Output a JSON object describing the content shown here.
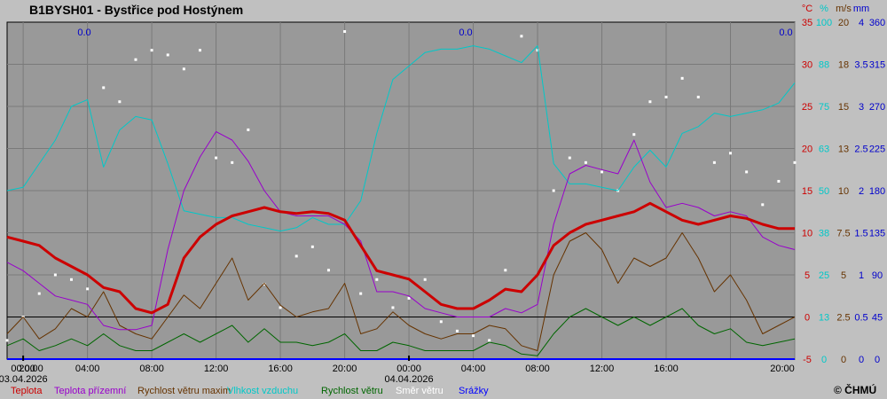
{
  "chart_data": {
    "type": "line",
    "title": "B1BYSH01 - Bystřice pod Hostýnem",
    "copyright": "© ČHMÚ",
    "precip_labels": [
      "0.0",
      "0.0",
      "0.0"
    ],
    "x_ticks": [
      "20:00",
      "00:00",
      "04:00",
      "08:00",
      "12:00",
      "16:00",
      "20:00",
      "00:00",
      "04:00",
      "08:00",
      "12:00",
      "16:00",
      "20:00"
    ],
    "date_labels": [
      "03.04.2026",
      "04.04.2026"
    ],
    "axes": [
      {
        "unit": "°C",
        "color": "#cc0000",
        "ticks": [
          "35",
          "30",
          "25",
          "20",
          "15",
          "10",
          "5",
          "0",
          "-5"
        ]
      },
      {
        "unit": "%",
        "color": "#00c8c8",
        "ticks": [
          "100",
          "88",
          "75",
          "63",
          "50",
          "38",
          "25",
          "13",
          "0"
        ]
      },
      {
        "unit": "m/s",
        "color": "#663300",
        "ticks": [
          "20",
          "18",
          "15",
          "13",
          "10",
          "7.5",
          "5",
          "2.5",
          "0"
        ]
      },
      {
        "unit": "mm",
        "color": "#0000cc",
        "ticks": [
          "4",
          "3.5",
          "3",
          "2.5",
          "2",
          "1.5",
          "1",
          "0.5",
          "0"
        ]
      },
      {
        "unit": "",
        "color": "#0000cc",
        "ticks": [
          "360",
          "315",
          "270",
          "225",
          "180",
          "135",
          "90",
          "45",
          "0"
        ]
      }
    ],
    "legend": [
      {
        "label": "Teplota",
        "color": "#cc0000"
      },
      {
        "label": "Teplota přízemní",
        "color": "#9900cc"
      },
      {
        "label": "Rychlost větru maxim",
        "color": "#663300"
      },
      {
        "label": "Vlhkost vzduchu",
        "color": "#00c8c8"
      },
      {
        "label": "Rychlost větru",
        "color": "#006600"
      },
      {
        "label": "Směr  větru",
        "color": "#ffffff"
      },
      {
        "label": "Srážky",
        "color": "#0000ff"
      }
    ],
    "time_range_h": [
      -1,
      48
    ],
    "temp_range": [
      -5,
      35
    ],
    "series": [
      {
        "key": "temp",
        "color": "#cc0000",
        "x": [
          -1,
          0,
          1,
          2,
          3,
          4,
          5,
          6,
          7,
          8,
          9,
          10,
          11,
          12,
          13,
          14,
          15,
          16,
          17,
          18,
          19,
          20,
          21,
          22,
          23,
          24,
          25,
          26,
          27,
          28,
          29,
          30,
          31,
          32,
          33,
          34,
          35,
          36,
          37,
          38,
          39,
          40,
          41,
          42,
          43,
          44,
          45,
          46,
          47,
          48
        ],
        "values": [
          9.5,
          9,
          8.5,
          7,
          6,
          5,
          3.5,
          3,
          1,
          0.5,
          1.5,
          7,
          9.5,
          11,
          12,
          12.5,
          13,
          12.5,
          12.3,
          12.5,
          12.3,
          11.5,
          8.5,
          5.5,
          5,
          4.5,
          3,
          1.5,
          1,
          1,
          2,
          3.3,
          3,
          5,
          8.5,
          10,
          11,
          11.5,
          12,
          12.5,
          13.5,
          12.5,
          11.5,
          11,
          11.5,
          12,
          11.7,
          11,
          10.5,
          10.5
        ]
      },
      {
        "key": "ground_temp",
        "color": "#9900cc",
        "x": [
          -1,
          0,
          1,
          2,
          3,
          4,
          5,
          6,
          7,
          8,
          9,
          10,
          11,
          12,
          13,
          14,
          15,
          16,
          17,
          18,
          19,
          20,
          21,
          22,
          23,
          24,
          25,
          26,
          27,
          28,
          29,
          30,
          31,
          32,
          33,
          34,
          35,
          36,
          37,
          38,
          39,
          40,
          41,
          42,
          43,
          44,
          45,
          46,
          47,
          48
        ],
        "values": [
          6.5,
          5.5,
          4,
          2.5,
          2,
          1.5,
          -1,
          -1.5,
          -1.5,
          -1,
          8,
          15,
          19,
          22,
          21,
          18.5,
          15,
          12.5,
          12,
          12,
          12,
          11,
          9,
          3,
          3,
          2.5,
          1,
          0.5,
          0,
          0,
          0,
          1,
          0.5,
          1.5,
          11,
          17,
          18,
          17.5,
          17,
          21,
          16,
          13,
          13.5,
          13,
          12,
          12.5,
          12,
          9.5,
          8.5,
          8
        ]
      },
      {
        "key": "humidity",
        "color": "#00c8c8",
        "x": [
          -1,
          0,
          1,
          2,
          3,
          4,
          5,
          6,
          7,
          8,
          9,
          10,
          11,
          12,
          13,
          14,
          15,
          16,
          17,
          18,
          19,
          20,
          21,
          22,
          23,
          24,
          25,
          26,
          27,
          28,
          29,
          30,
          31,
          32,
          33,
          34,
          35,
          36,
          37,
          38,
          39,
          40,
          41,
          42,
          43,
          44,
          45,
          46,
          47,
          48
        ],
        "values": [
          50,
          51,
          58,
          65,
          75,
          77,
          57,
          68,
          72,
          71,
          58,
          44,
          43,
          42,
          42,
          40,
          39,
          38,
          39,
          42,
          40,
          40,
          47,
          67,
          83,
          87,
          91,
          92,
          92,
          93,
          92,
          90,
          88,
          93,
          58,
          52,
          52,
          51,
          50,
          57,
          62,
          57,
          67,
          69,
          73,
          72,
          73,
          74,
          76,
          82
        ]
      },
      {
        "key": "wind_max",
        "color": "#663300",
        "x": [
          -1,
          0,
          1,
          2,
          3,
          4,
          5,
          6,
          7,
          8,
          9,
          10,
          11,
          12,
          13,
          14,
          15,
          16,
          17,
          18,
          19,
          20,
          21,
          22,
          23,
          24,
          25,
          26,
          27,
          28,
          29,
          30,
          31,
          32,
          33,
          34,
          35,
          36,
          37,
          38,
          39,
          40,
          41,
          42,
          43,
          44,
          45,
          46,
          47,
          48
        ],
        "values": [
          1.5,
          2.5,
          1.2,
          1.8,
          3,
          2.5,
          4,
          2,
          1.5,
          1.2,
          2.5,
          3.8,
          3,
          4.5,
          6,
          3.5,
          4.5,
          3.2,
          2.5,
          2.8,
          3,
          4.5,
          1.5,
          1.8,
          2.8,
          2,
          1.5,
          1.2,
          1.5,
          1.5,
          2,
          1.8,
          0.8,
          0.5,
          5,
          7,
          7.5,
          6.5,
          4.5,
          6,
          5.5,
          6,
          7.5,
          6,
          4,
          5,
          3.5,
          1.5,
          2,
          2.5
        ]
      },
      {
        "key": "wind",
        "color": "#006600",
        "x": [
          -1,
          0,
          1,
          2,
          3,
          4,
          5,
          6,
          7,
          8,
          9,
          10,
          11,
          12,
          13,
          14,
          15,
          16,
          17,
          18,
          19,
          20,
          21,
          22,
          23,
          24,
          25,
          26,
          27,
          28,
          29,
          30,
          31,
          32,
          33,
          34,
          35,
          36,
          37,
          38,
          39,
          40,
          41,
          42,
          43,
          44,
          45,
          46,
          47,
          48
        ],
        "values": [
          0.8,
          1.2,
          0.5,
          0.8,
          1.2,
          0.8,
          1.5,
          0.8,
          0.5,
          0.5,
          1,
          1.5,
          1,
          1.5,
          2,
          1,
          1.8,
          1,
          1,
          0.8,
          1,
          1.5,
          0.5,
          0.5,
          1,
          0.8,
          0.5,
          0.5,
          0.5,
          0.5,
          1,
          0.8,
          0.3,
          0.2,
          1.5,
          2.5,
          3,
          2.5,
          2,
          2.5,
          2,
          2.5,
          3,
          2,
          1.5,
          1.8,
          1,
          0.8,
          1,
          1.2
        ]
      },
      {
        "key": "wind_dir",
        "color": "#ffffff",
        "type": "scatter",
        "x": [
          -1,
          0,
          1,
          2,
          3,
          4,
          5,
          6,
          7,
          8,
          9,
          10,
          11,
          12,
          13,
          14,
          15,
          16,
          17,
          18,
          19,
          20,
          21,
          22,
          23,
          24,
          25,
          26,
          27,
          28,
          29,
          30,
          31,
          32,
          33,
          34,
          35,
          36,
          37,
          38,
          39,
          40,
          41,
          42,
          43,
          44,
          45,
          46,
          47,
          48
        ],
        "values": [
          20,
          45,
          70,
          90,
          85,
          75,
          290,
          275,
          320,
          330,
          325,
          310,
          330,
          215,
          210,
          245,
          80,
          55,
          110,
          120,
          95,
          350,
          70,
          85,
          55,
          65,
          85,
          40,
          30,
          25,
          20,
          95,
          345,
          330,
          180,
          215,
          210,
          200,
          180,
          240,
          275,
          280,
          300,
          280,
          210,
          220,
          200,
          165,
          190,
          210
        ]
      },
      {
        "key": "precip",
        "color": "#0000ff",
        "x": [
          -1,
          48
        ],
        "values": [
          0,
          0
        ]
      }
    ]
  }
}
